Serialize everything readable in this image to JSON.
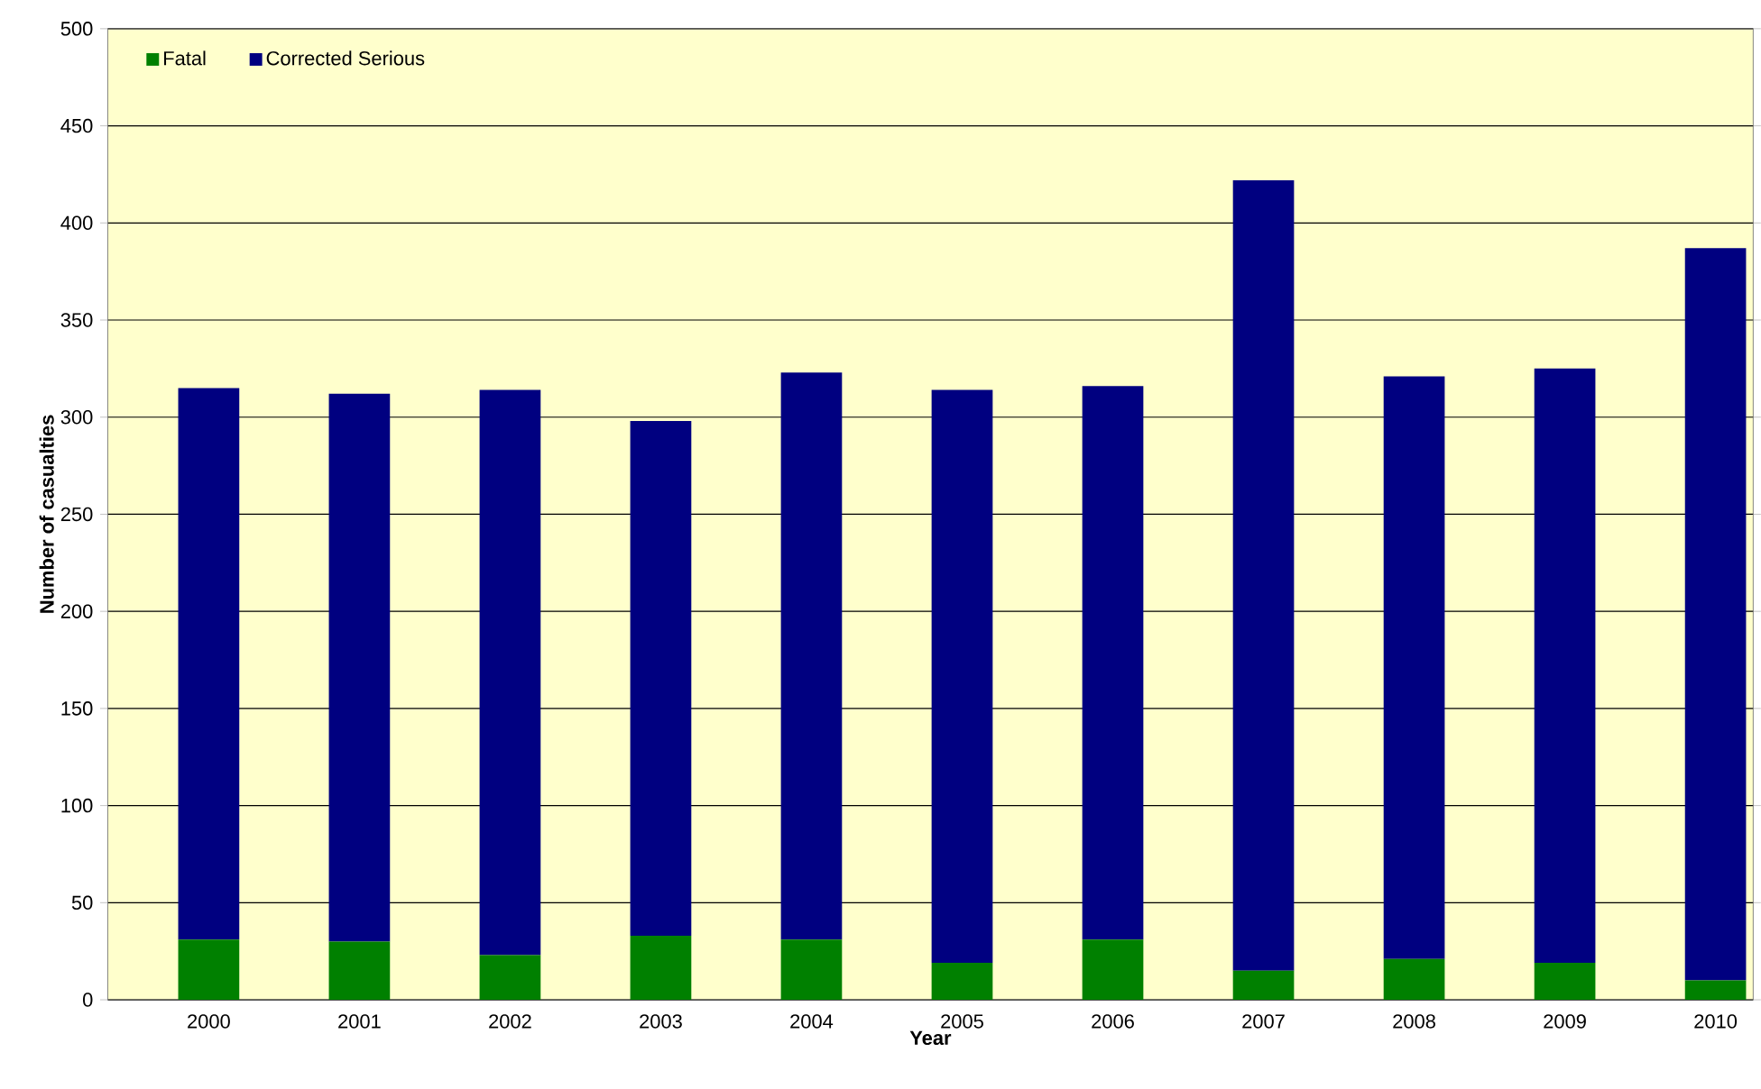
{
  "chart_data": {
    "type": "bar",
    "stacked": true,
    "xlabel": "Year",
    "ylabel": "Number of casualties",
    "categories": [
      "2000",
      "2001",
      "2002",
      "2003",
      "2004",
      "2005",
      "2006",
      "2007",
      "2008",
      "2009",
      "2010"
    ],
    "series": [
      {
        "name": "Fatal",
        "color": "#008000",
        "values": [
          31,
          30,
          23,
          33,
          31,
          19,
          31,
          15,
          21,
          19,
          10
        ]
      },
      {
        "name": "Corrected Serious",
        "color": "#000080",
        "values": [
          284,
          282,
          291,
          265,
          292,
          295,
          285,
          407,
          300,
          306,
          377
        ]
      }
    ],
    "ylim": [
      0,
      500
    ],
    "yticks": [
      0,
      50,
      100,
      150,
      200,
      250,
      300,
      350,
      400,
      450,
      500
    ],
    "grid": "y",
    "legend": "top left"
  }
}
